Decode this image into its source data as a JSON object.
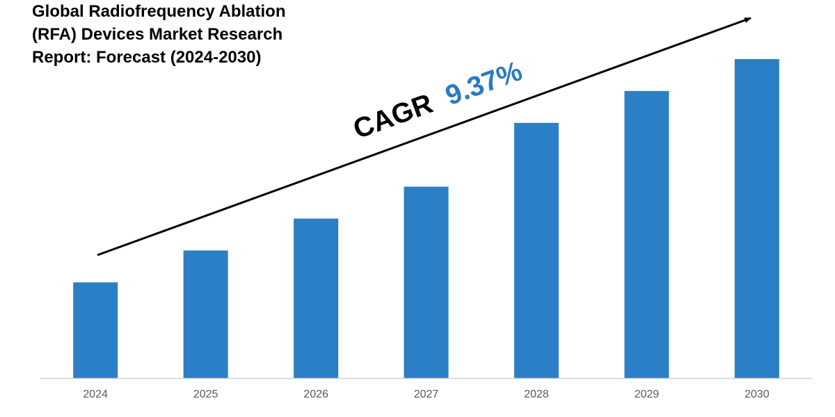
{
  "title_lines": [
    "Global Radiofrequency Ablation",
    "(RFA) Devices Market Research",
    "Report: Forecast (2024-2030)"
  ],
  "annotation": {
    "prefix": "CAGR",
    "value": "9.37%",
    "prefix_color": "#000000",
    "value_color": "#2a7ac4"
  },
  "colors": {
    "bar": "#2a7fc6",
    "axis": "#d0d0d0",
    "arrow": "#000000"
  },
  "chart_data": {
    "type": "bar",
    "categories": [
      "2024",
      "2025",
      "2026",
      "2027",
      "2028",
      "2029",
      "2030"
    ],
    "values": [
      30,
      40,
      50,
      60,
      80,
      90,
      100
    ],
    "ylim": [
      0,
      100
    ],
    "grid": false,
    "legend": "none",
    "xlabel": "",
    "ylabel": ""
  }
}
